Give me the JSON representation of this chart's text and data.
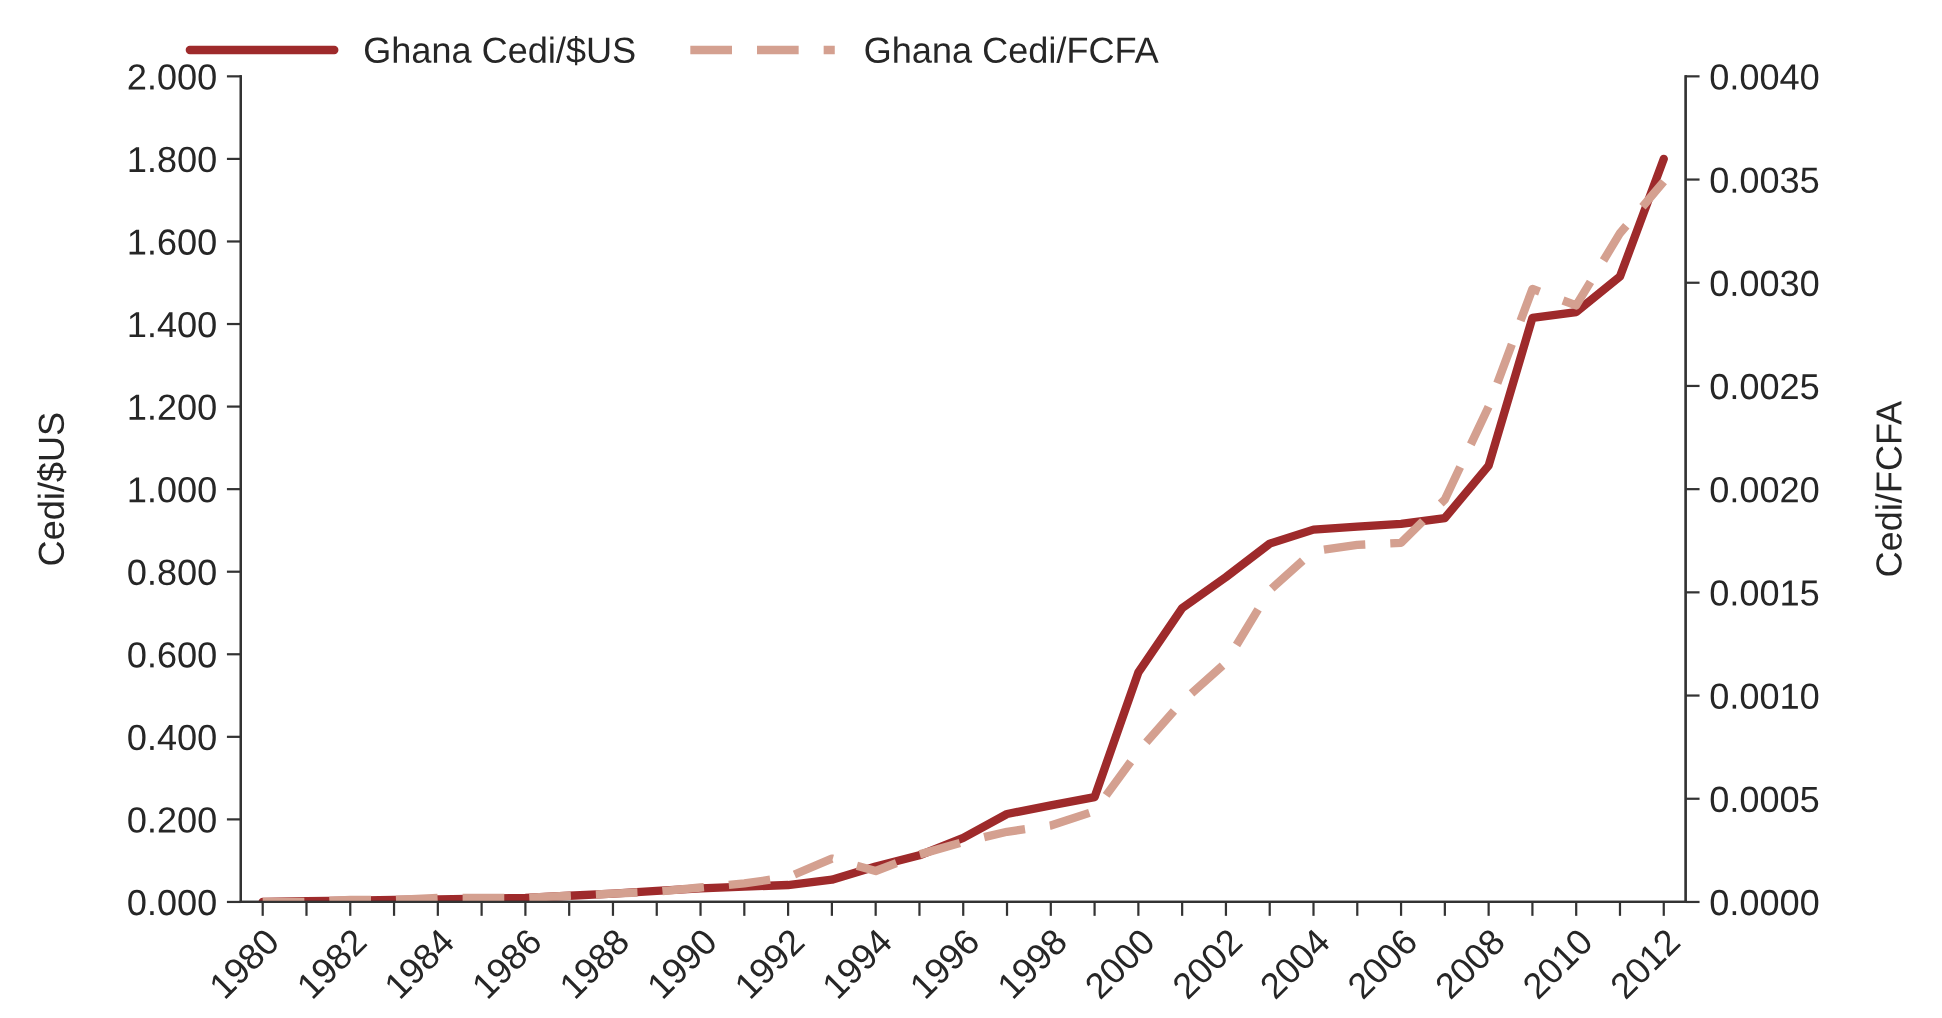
{
  "chart_data": {
    "type": "line",
    "categories": [
      "1980",
      null,
      "1982",
      null,
      "1984",
      null,
      "1986",
      null,
      "1988",
      null,
      "1990",
      null,
      "1992",
      null,
      "1994",
      null,
      "1996",
      null,
      "1998",
      null,
      "2000",
      null,
      "2002",
      null,
      "2004",
      null,
      "2006",
      null,
      "2008",
      null,
      "2010",
      null,
      "2012"
    ],
    "series": [
      {
        "name": "Ghana Cedi/$US",
        "color": "#9e2a2b",
        "line_style": "solid",
        "values": [
          0.0,
          0.002,
          0.003,
          0.005,
          0.006,
          0.008,
          0.01,
          0.015,
          0.02,
          0.027,
          0.033,
          0.037,
          0.041,
          0.054,
          0.086,
          0.113,
          0.155,
          0.213,
          0.234,
          0.254,
          0.556,
          0.712,
          0.787,
          0.868,
          0.902,
          0.909,
          0.916,
          0.93,
          1.057,
          1.415,
          1.429,
          1.515,
          1.8
        ]
      },
      {
        "name": "Ghana Cedi/FCFA",
        "color": "#d4a090",
        "line_style": "dashed",
        "axis": "y2",
        "values": [
          0.0,
          0.0,
          1e-05,
          1e-05,
          2e-05,
          2e-05,
          2e-05,
          3e-05,
          4e-05,
          5e-05,
          7e-05,
          9e-05,
          0.00012,
          0.00021,
          0.00015,
          0.00023,
          0.00029,
          0.00034,
          0.00037,
          0.00044,
          0.00073,
          0.00097,
          0.00116,
          0.00151,
          0.0017,
          0.00173,
          0.00174,
          0.00195,
          0.0024,
          0.00297,
          0.00289,
          0.00324,
          0.00349
        ]
      }
    ],
    "ylabel": "Cedi/$US",
    "y2label": "Cedi/FCFA",
    "ylim": [
      0,
      2.0
    ],
    "yticks": [
      {
        "value": 0,
        "label": "0.000"
      },
      {
        "value": 0.2,
        "label": "0.200"
      },
      {
        "value": 0.4,
        "label": "0.400"
      },
      {
        "value": 0.6,
        "label": "0.600"
      },
      {
        "value": 0.8,
        "label": "0.800"
      },
      {
        "value": 1.0,
        "label": "1.000"
      },
      {
        "value": 1.2,
        "label": "1.200"
      },
      {
        "value": 1.4,
        "label": "1.400"
      },
      {
        "value": 1.6,
        "label": "1.600"
      },
      {
        "value": 1.8,
        "label": "1.800"
      },
      {
        "value": 2.0,
        "label": "2.000"
      }
    ],
    "y2lim": [
      0,
      0.004
    ],
    "y2ticks": [
      {
        "value": 0,
        "label": "0.0000"
      },
      {
        "value": 0.0005,
        "label": "0.0005"
      },
      {
        "value": 0.001,
        "label": "0.0010"
      },
      {
        "value": 0.0015,
        "label": "0.0015"
      },
      {
        "value": 0.002,
        "label": "0.0020"
      },
      {
        "value": 0.0025,
        "label": "0.0025"
      },
      {
        "value": 0.003,
        "label": "0.0030"
      },
      {
        "value": 0.0035,
        "label": "0.0035"
      },
      {
        "value": 0.004,
        "label": "0.0040"
      }
    ],
    "grid": false,
    "legend": "top"
  }
}
